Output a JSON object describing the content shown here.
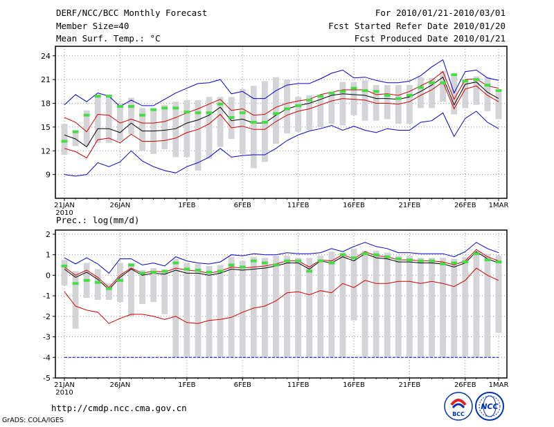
{
  "header": {
    "title": "DERF/NCC/BCC Monthly Forecast",
    "member_size": "Member Size=40",
    "variable": "Mean Surf. Temp.: °C",
    "period": "For 2010/01/21-2010/03/01",
    "started": "Fcst Started Refer Date 2010/01/20",
    "produced": "Fcst Produced Date 2010/01/21"
  },
  "footer": {
    "url": "http://cmdp.ncc.cma.gov.cn",
    "grads": "GrADS: COLA/IGES",
    "logo_left": "BCC",
    "logo_right": "NCC"
  },
  "colors": {
    "mean": "#000000",
    "spread": "#cc0000",
    "extreme": "#0000cc",
    "box": "#d4d4d8",
    "member": "#44dd44",
    "grid": "#888888"
  },
  "chart_data": [
    {
      "type": "line",
      "title": "Mean Surf. Temp.: °C",
      "ylim": [
        6,
        25.2
      ],
      "yticks": [
        9,
        12,
        15,
        18,
        21,
        24
      ],
      "x": [
        1,
        2,
        3,
        4,
        5,
        6,
        7,
        8,
        9,
        10,
        11,
        12,
        13,
        14,
        15,
        16,
        17,
        18,
        19,
        20,
        21,
        22,
        23,
        24,
        25,
        26,
        27,
        28,
        29,
        30,
        31,
        32,
        33,
        34,
        35,
        36,
        37,
        38,
        39,
        40
      ],
      "xticks": [
        {
          "day": 1,
          "label": "21JAN",
          "sub": "2010"
        },
        {
          "day": 6,
          "label": "26JAN"
        },
        {
          "day": 12,
          "label": "1FEB"
        },
        {
          "day": 17,
          "label": "6FEB"
        },
        {
          "day": 22,
          "label": "11FEB"
        },
        {
          "day": 27,
          "label": "16FEB"
        },
        {
          "day": 32,
          "label": "21FEB"
        },
        {
          "day": 37,
          "label": "26FEB"
        },
        {
          "day": 40,
          "label": "1MAR"
        }
      ],
      "series": [
        {
          "name": "max",
          "color": "#0000cc",
          "values": [
            17.8,
            19.1,
            18.2,
            19.3,
            18.9,
            17.6,
            18.4,
            17.7,
            17.7,
            18.5,
            19.3,
            19.9,
            20.5,
            20.6,
            21.0,
            19.2,
            19.5,
            18.6,
            18.6,
            19.6,
            20.3,
            20.5,
            20.5,
            21.1,
            21.8,
            22.2,
            21.2,
            21.3,
            20.9,
            20.6,
            20.6,
            20.8,
            21.5,
            22.6,
            23.5,
            19.3,
            22.0,
            22.2,
            21.2,
            20.9
          ]
        },
        {
          "name": "upper",
          "color": "#cc0000",
          "values": [
            16.2,
            15.6,
            14.4,
            16.6,
            16.5,
            15.5,
            16.0,
            15.5,
            15.5,
            15.7,
            16.2,
            16.8,
            17.3,
            17.9,
            18.5,
            17.1,
            17.3,
            16.5,
            16.6,
            17.5,
            18.0,
            18.3,
            18.5,
            19.1,
            19.4,
            19.7,
            19.7,
            19.7,
            19.1,
            19.2,
            19.0,
            19.5,
            20.2,
            20.9,
            22.0,
            18.5,
            21.0,
            21.1,
            20.2,
            19.9
          ]
        },
        {
          "name": "mean",
          "color": "#000000",
          "values": [
            14.0,
            13.5,
            12.5,
            14.8,
            14.8,
            14.3,
            15.5,
            14.5,
            14.5,
            14.6,
            14.8,
            15.5,
            15.9,
            16.5,
            17.5,
            15.8,
            16.0,
            15.5,
            15.5,
            16.5,
            17.3,
            17.7,
            18.0,
            18.5,
            19.0,
            19.2,
            19.1,
            19.0,
            18.6,
            18.6,
            18.5,
            18.8,
            19.5,
            20.3,
            21.3,
            17.8,
            20.4,
            20.7,
            19.4,
            18.6
          ]
        },
        {
          "name": "lower",
          "color": "#cc0000",
          "values": [
            12.3,
            11.9,
            11.1,
            13.4,
            13.6,
            13.0,
            14.1,
            13.2,
            13.2,
            13.3,
            13.6,
            14.3,
            14.7,
            15.4,
            16.6,
            14.9,
            15.1,
            14.7,
            14.7,
            15.7,
            16.5,
            17.0,
            17.3,
            17.8,
            18.3,
            18.6,
            18.5,
            18.4,
            18.0,
            18.0,
            17.9,
            18.2,
            19.0,
            19.7,
            20.7,
            17.3,
            19.8,
            20.2,
            19.0,
            18.2
          ]
        },
        {
          "name": "min",
          "color": "#0000cc",
          "values": [
            9.0,
            8.8,
            9.0,
            10.5,
            10.0,
            10.6,
            12.0,
            10.7,
            10.0,
            9.5,
            9.2,
            10.0,
            10.5,
            11.2,
            12.3,
            11.2,
            11.4,
            11.5,
            11.5,
            12.3,
            13.3,
            14.0,
            14.5,
            14.8,
            15.2,
            14.6,
            15.1,
            14.6,
            14.3,
            14.8,
            14.6,
            14.6,
            15.6,
            15.8,
            16.8,
            13.8,
            16.1,
            17.0,
            15.6,
            14.8
          ]
        }
      ],
      "box_low": [
        11.5,
        12.6,
        12.6,
        13.0,
        13.0,
        13.3,
        14.1,
        12.0,
        11.6,
        12.2,
        11.2,
        11.2,
        9.5,
        11.0,
        12.5,
        13.5,
        11.6,
        9.8,
        10.6,
        12.9,
        14.2,
        14.4,
        14.6,
        15.0,
        15.4,
        15.2,
        16.5,
        15.8,
        15.8,
        16.0,
        15.4,
        15.4,
        17.4,
        17.4,
        18.2,
        16.6,
        17.4,
        17.8,
        17.0,
        16.0
      ],
      "box_high": [
        15.4,
        14.6,
        17.1,
        19.1,
        19.1,
        18.0,
        18.7,
        17.4,
        17.1,
        17.8,
        18.2,
        18.4,
        18.4,
        18.8,
        18.8,
        18.8,
        19.8,
        20.2,
        20.8,
        21.3,
        21.0,
        18.8,
        19.0,
        18.8,
        19.4,
        20.7,
        20.7,
        20.9,
        20.3,
        20.3,
        20.3,
        20.3,
        21.3,
        21.2,
        22.1,
        21.4,
        20.7,
        21.4,
        21.3,
        19.4
      ],
      "member": [
        13.2,
        14.4,
        16.5,
        18.9,
        18.9,
        17.6,
        17.6,
        16.5,
        17.2,
        17.4,
        17.4,
        16.9,
        16.8,
        16.8,
        17.9,
        16.2,
        16.8,
        15.6,
        15.6,
        16.7,
        17.3,
        17.7,
        18.4,
        18.9,
        19.3,
        19.5,
        19.9,
        19.6,
        19.5,
        19.0,
        18.6,
        19.0,
        20.0,
        20.6,
        20.6,
        21.6,
        20.8,
        21.0,
        20.3,
        19.6
      ]
    },
    {
      "type": "line",
      "title": "Prec.: log(mm/d)",
      "ylim": [
        -5,
        2.2
      ],
      "yticks": [
        -5,
        -4,
        -3,
        -2,
        -1,
        0,
        1,
        2
      ],
      "x": [
        1,
        2,
        3,
        4,
        5,
        6,
        7,
        8,
        9,
        10,
        11,
        12,
        13,
        14,
        15,
        16,
        17,
        18,
        19,
        20,
        21,
        22,
        23,
        24,
        25,
        26,
        27,
        28,
        29,
        30,
        31,
        32,
        33,
        34,
        35,
        36,
        37,
        38,
        39,
        40
      ],
      "xticks": [
        {
          "day": 1,
          "label": "21JAN",
          "sub": "2010"
        },
        {
          "day": 6,
          "label": "26JAN"
        },
        {
          "day": 12,
          "label": "1FEB"
        },
        {
          "day": 17,
          "label": "6FEB"
        },
        {
          "day": 22,
          "label": "11FEB"
        },
        {
          "day": 27,
          "label": "16FEB"
        },
        {
          "day": 32,
          "label": "21FEB"
        },
        {
          "day": 37,
          "label": "26FEB"
        },
        {
          "day": 40,
          "label": "1MAR"
        }
      ],
      "series": [
        {
          "name": "max",
          "color": "#0000cc",
          "values": [
            0.85,
            0.55,
            0.85,
            0.55,
            0.1,
            0.8,
            0.8,
            0.5,
            0.6,
            0.45,
            0.9,
            0.7,
            0.6,
            0.55,
            0.65,
            1.0,
            0.95,
            1.05,
            1.0,
            1.0,
            1.1,
            1.05,
            1.05,
            1.1,
            1.3,
            1.15,
            1.4,
            1.6,
            1.4,
            1.3,
            1.1,
            1.1,
            1.05,
            1.05,
            1.05,
            0.9,
            1.15,
            1.6,
            1.3,
            1.1
          ]
        },
        {
          "name": "upper",
          "color": "#cc0000",
          "values": [
            0.4,
            0.0,
            0.25,
            -0.1,
            -0.6,
            0.0,
            0.35,
            0.1,
            0.2,
            0.15,
            0.35,
            0.25,
            0.2,
            0.1,
            0.2,
            0.4,
            0.35,
            0.4,
            0.45,
            0.55,
            0.7,
            0.7,
            0.4,
            0.75,
            0.7,
            1.0,
            0.8,
            1.15,
            0.95,
            0.9,
            0.75,
            0.75,
            0.7,
            0.7,
            0.65,
            0.5,
            0.7,
            1.25,
            0.9,
            0.7
          ]
        },
        {
          "name": "mean",
          "color": "#000000",
          "values": [
            0.3,
            -0.1,
            0.15,
            -0.2,
            -0.7,
            -0.1,
            0.3,
            0.0,
            0.1,
            0.05,
            0.25,
            0.1,
            0.1,
            0.0,
            0.1,
            0.3,
            0.25,
            0.3,
            0.35,
            0.45,
            0.6,
            0.6,
            0.3,
            0.7,
            0.6,
            0.9,
            0.7,
            1.05,
            0.85,
            0.8,
            0.65,
            0.65,
            0.6,
            0.6,
            0.55,
            0.4,
            0.6,
            1.15,
            0.8,
            0.6
          ]
        },
        {
          "name": "lower",
          "color": "#cc0000",
          "values": [
            -0.8,
            -1.5,
            -1.7,
            -1.8,
            -2.35,
            -2.1,
            -1.9,
            -1.9,
            -2.0,
            -2.15,
            -2.0,
            -2.3,
            -2.35,
            -2.2,
            -2.15,
            -2.05,
            -1.8,
            -1.6,
            -1.5,
            -1.25,
            -0.85,
            -0.8,
            -0.95,
            -0.75,
            -0.85,
            -0.4,
            -0.6,
            -0.25,
            -0.4,
            -0.4,
            -0.3,
            -0.3,
            -0.4,
            -0.3,
            -0.4,
            -0.55,
            -0.25,
            0.35,
            0.0,
            -0.25
          ]
        },
        {
          "name": "min",
          "color": "#0000cc",
          "values": [
            -4,
            -4,
            -4,
            -4,
            -4,
            -4,
            -4,
            -4,
            -4,
            -4,
            -4,
            -4,
            -4,
            -4,
            -4,
            -4,
            -4,
            -4,
            -4,
            -4,
            -4,
            -4,
            -4,
            -4,
            -4,
            -4,
            -4,
            -4,
            -4,
            -4,
            -4,
            -4,
            -4,
            -4,
            -4,
            -4,
            -4,
            -4,
            -4,
            -4
          ]
        }
      ],
      "box_low": [
        -0.5,
        -2.6,
        -1.1,
        -1.2,
        -1.2,
        -1.3,
        -2.0,
        -1.4,
        -1.3,
        -1.9,
        -4,
        -4,
        -4,
        -4,
        -4,
        -4,
        -4,
        -4,
        -4,
        -4,
        -4,
        -4,
        -4,
        -4,
        -4,
        -4,
        -2.2,
        -4,
        -4,
        -4,
        -4,
        -4,
        -4,
        -4,
        -4,
        -4,
        -4,
        -4,
        -4,
        -2.8
      ],
      "box_high": [
        0.75,
        0.2,
        0.6,
        0.3,
        -0.4,
        0.6,
        0.6,
        0.25,
        0.35,
        0.25,
        0.8,
        0.6,
        0.55,
        0.45,
        0.5,
        0.9,
        0.7,
        0.9,
        0.85,
        0.95,
        0.95,
        0.85,
        0.85,
        0.95,
        1.15,
        1.1,
        1.3,
        1.2,
        1.2,
        1.1,
        0.95,
        0.95,
        0.85,
        0.85,
        0.85,
        0.8,
        0.9,
        1.15,
        1.05,
        0.95
      ],
      "member": [
        0.45,
        -0.4,
        -0.25,
        -0.35,
        -0.65,
        -0.25,
        0.5,
        0.1,
        0.15,
        0.2,
        0.6,
        0.3,
        0.25,
        0.15,
        0.2,
        0.5,
        0.4,
        0.7,
        0.6,
        0.5,
        0.7,
        0.7,
        0.2,
        0.7,
        0.6,
        1.0,
        0.85,
        1.05,
        1.0,
        0.9,
        0.8,
        0.75,
        0.7,
        0.7,
        0.55,
        0.6,
        0.65,
        1.05,
        0.75,
        0.65
      ]
    }
  ]
}
